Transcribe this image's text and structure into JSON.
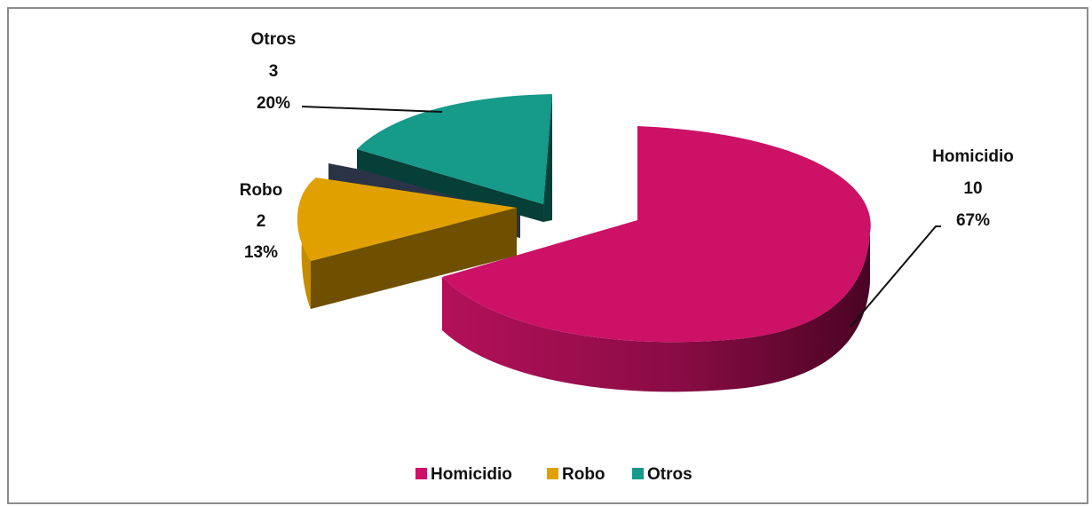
{
  "chart_data": {
    "type": "pie",
    "style": "3d-exploded",
    "categories": [
      "Homicidio",
      "Robo",
      "Otros"
    ],
    "values": [
      10,
      2,
      3
    ],
    "percentages": [
      "67%",
      "13%",
      "20%"
    ],
    "colors": [
      "#cc1166",
      "#e0a100",
      "#169a8a"
    ],
    "legend_position": "bottom",
    "data_labels": [
      {
        "category": "Homicidio",
        "value": "10",
        "percent": "67%"
      },
      {
        "category": "Robo",
        "value": "2",
        "percent": "13%"
      },
      {
        "category": "Otros",
        "value": "3",
        "percent": "20%"
      }
    ]
  }
}
